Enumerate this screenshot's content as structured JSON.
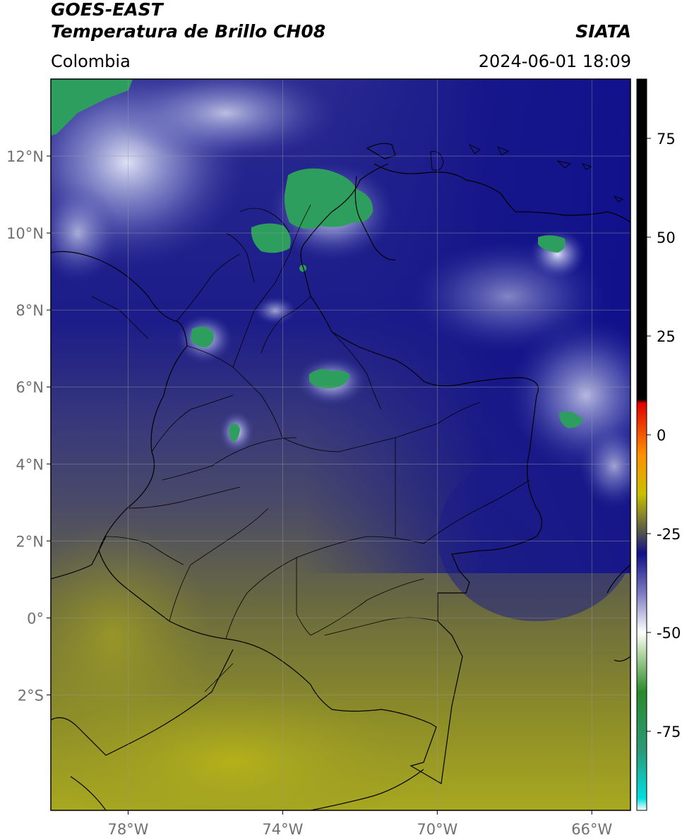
{
  "header": {
    "satellite": "GOES-EAST",
    "product": "Temperatura de Brillo CH08",
    "organization": "SIATA",
    "region": "Colombia",
    "timestamp": "2024-06-01 18:09"
  },
  "map": {
    "lon_range": [
      -80,
      -65
    ],
    "lat_range": [
      -5,
      14
    ],
    "lon_ticks": [
      {
        "value": -78,
        "label": "78°W"
      },
      {
        "value": -74,
        "label": "74°W"
      },
      {
        "value": -70,
        "label": "70°W"
      },
      {
        "value": -66,
        "label": "66°W"
      }
    ],
    "lat_ticks": [
      {
        "value": 12,
        "label": "12°N"
      },
      {
        "value": 10,
        "label": "10°N"
      },
      {
        "value": 8,
        "label": "8°N"
      },
      {
        "value": 6,
        "label": "6°N"
      },
      {
        "value": 4,
        "label": "4°N"
      },
      {
        "value": 2,
        "label": "2°N"
      },
      {
        "value": 0,
        "label": "0°"
      },
      {
        "value": -2,
        "label": "2°S"
      }
    ],
    "grid": true
  },
  "colorbar": {
    "range": [
      -95,
      90
    ],
    "ticks": [
      {
        "value": 75,
        "label": "75"
      },
      {
        "value": 50,
        "label": "50"
      },
      {
        "value": 25,
        "label": "25"
      },
      {
        "value": 0,
        "label": "0"
      },
      {
        "value": -25,
        "label": "-25"
      },
      {
        "value": -50,
        "label": "-50"
      },
      {
        "value": -75,
        "label": "-75"
      }
    ],
    "stops": [
      {
        "value": -95,
        "color": "#ffffff"
      },
      {
        "value": -92,
        "color": "#00e0e0"
      },
      {
        "value": -80,
        "color": "#2a9a7a"
      },
      {
        "value": -65,
        "color": "#2a8a2a"
      },
      {
        "value": -55,
        "color": "#b8d8a8"
      },
      {
        "value": -50,
        "color": "#ffffff"
      },
      {
        "value": -40,
        "color": "#7a7ac0"
      },
      {
        "value": -30,
        "color": "#101088"
      },
      {
        "value": -25,
        "color": "#505050"
      },
      {
        "value": -15,
        "color": "#c8c000"
      },
      {
        "value": -5,
        "color": "#ff9000"
      },
      {
        "value": 8,
        "color": "#e00000"
      },
      {
        "value": 9,
        "color": "#000000"
      },
      {
        "value": 90,
        "color": "#000000"
      }
    ]
  },
  "legend_colors": {
    "cold_cloud": "#2e9e5e",
    "high_cloud": "#e8ecf8",
    "moist_air": "#1a1a8c",
    "mid_air": "#5a5a70",
    "dry_air": "#a8a820",
    "borders": "#000000"
  }
}
